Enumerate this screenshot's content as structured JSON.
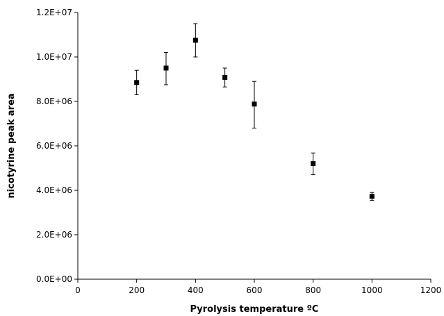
{
  "chart_data": {
    "type": "scatter",
    "xlabel": "Pyrolysis temperature ºC",
    "ylabel": "nicotyrine peak area",
    "xlim": [
      0,
      1200
    ],
    "ylim": [
      0,
      12000000
    ],
    "x_ticks": [
      0,
      200,
      400,
      600,
      800,
      1000,
      1200
    ],
    "x_tick_labels": [
      "0",
      "200",
      "400",
      "600",
      "800",
      "1000",
      "1200"
    ],
    "y_ticks": [
      0,
      2000000,
      4000000,
      6000000,
      8000000,
      10000000,
      12000000
    ],
    "y_tick_labels": [
      "0.0E+00",
      "2.0E+06",
      "4.0E+06",
      "6.0E+06",
      "8.0E+06",
      "1.0E+07",
      "1.2E+07"
    ],
    "grid": false,
    "marker_color": "#000000",
    "points": [
      {
        "x": 200,
        "y": 8850000,
        "err_low": 8300000,
        "err_high": 9400000
      },
      {
        "x": 300,
        "y": 9500000,
        "err_low": 8750000,
        "err_high": 10200000
      },
      {
        "x": 400,
        "y": 10750000,
        "err_low": 10000000,
        "err_high": 11500000
      },
      {
        "x": 500,
        "y": 9080000,
        "err_low": 8650000,
        "err_high": 9500000
      },
      {
        "x": 600,
        "y": 7880000,
        "err_low": 6800000,
        "err_high": 8900000
      },
      {
        "x": 800,
        "y": 5200000,
        "err_low": 4700000,
        "err_high": 5680000
      },
      {
        "x": 1000,
        "y": 3730000,
        "err_low": 3550000,
        "err_high": 3900000
      }
    ]
  }
}
